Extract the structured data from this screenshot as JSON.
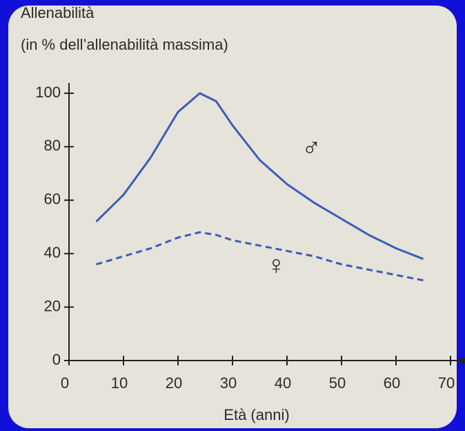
{
  "chart_data": {
    "type": "line",
    "ylabel": [
      "Allenabilità",
      "(in % dell’allenabilità massima)"
    ],
    "xlabel": "Età (anni)",
    "x": [
      5,
      10,
      15,
      20,
      24,
      27,
      30,
      35,
      40,
      45,
      50,
      55,
      60,
      65
    ],
    "series": [
      {
        "name": "♂",
        "color": "#3b5cb8",
        "dash": false,
        "values": [
          52,
          62,
          76,
          93,
          100,
          97,
          88,
          75,
          66,
          59,
          53,
          47,
          42,
          38
        ]
      },
      {
        "name": "♀",
        "color": "#3b5cb8",
        "dash": true,
        "values": [
          36,
          39,
          42,
          46,
          48,
          47,
          45,
          43,
          41,
          39,
          36,
          34,
          32,
          30
        ]
      }
    ],
    "xlim": [
      0,
      70
    ],
    "xticks": [
      0,
      10,
      20,
      30,
      40,
      50,
      60,
      70
    ],
    "ylim": [
      0,
      100
    ],
    "yticks": [
      0,
      20,
      40,
      60,
      80,
      100
    ]
  }
}
